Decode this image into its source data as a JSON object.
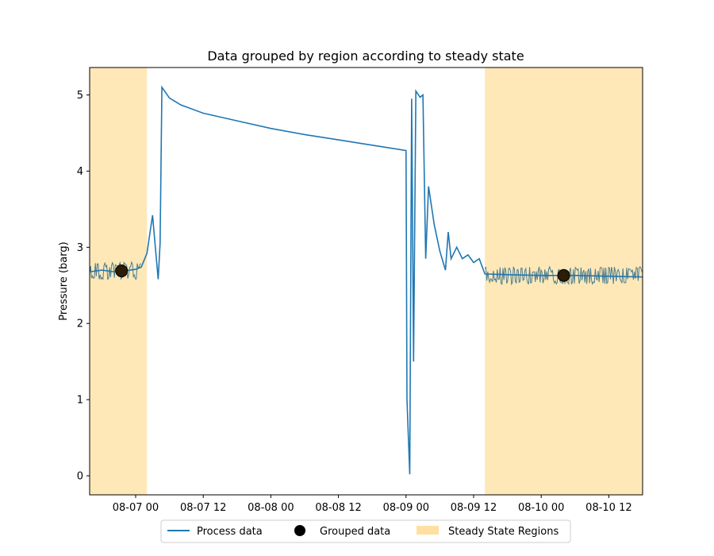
{
  "chart_data": {
    "type": "line",
    "title": "Data grouped by region according to steady state",
    "xlabel": "",
    "ylabel": "Pressure (barg)",
    "x_tick_labels": [
      "08-07 00",
      "08-07 12",
      "08-08 00",
      "08-08 12",
      "08-09 00",
      "08-09 12",
      "08-10 00",
      "08-10 12"
    ],
    "x_ticks": [
      "2021-08-07T00:00",
      "2021-08-07T12:00",
      "2021-08-08T00:00",
      "2021-08-08T12:00",
      "2021-08-09T00:00",
      "2021-08-09T12:00",
      "2021-08-10T00:00",
      "2021-08-10T12:00"
    ],
    "xlim": [
      "2021-08-06T15:50",
      "2021-08-10T18:00"
    ],
    "ylim": [
      -0.25,
      5.36
    ],
    "y_ticks": [
      0,
      1,
      2,
      3,
      4,
      5
    ],
    "legend_position": "below-center",
    "series": [
      {
        "name": "Process data",
        "kind": "line",
        "color": "#1f77b4",
        "points": [
          [
            "2021-08-06T16:00",
            2.68
          ],
          [
            "2021-08-06T18:00",
            2.7
          ],
          [
            "2021-08-06T20:00",
            2.68
          ],
          [
            "2021-08-06T22:00",
            2.69
          ],
          [
            "2021-08-07T00:00",
            2.71
          ],
          [
            "2021-08-07T01:00",
            2.74
          ],
          [
            "2021-08-07T02:00",
            2.92
          ],
          [
            "2021-08-07T03:00",
            3.42
          ],
          [
            "2021-08-07T03:30",
            3.0
          ],
          [
            "2021-08-07T04:00",
            2.58
          ],
          [
            "2021-08-07T04:20",
            3.05
          ],
          [
            "2021-08-07T04:40",
            5.1
          ],
          [
            "2021-08-07T06:00",
            4.96
          ],
          [
            "2021-08-07T08:00",
            4.87
          ],
          [
            "2021-08-07T12:00",
            4.76
          ],
          [
            "2021-08-07T18:00",
            4.66
          ],
          [
            "2021-08-08T00:00",
            4.56
          ],
          [
            "2021-08-08T06:00",
            4.48
          ],
          [
            "2021-08-08T12:00",
            4.41
          ],
          [
            "2021-08-08T18:00",
            4.34
          ],
          [
            "2021-08-09T00:00",
            4.27
          ],
          [
            "2021-08-09T00:10",
            1.0
          ],
          [
            "2021-08-09T00:40",
            0.02
          ],
          [
            "2021-08-09T01:00",
            4.95
          ],
          [
            "2021-08-09T01:20",
            1.5
          ],
          [
            "2021-08-09T01:45",
            5.05
          ],
          [
            "2021-08-09T02:30",
            4.97
          ],
          [
            "2021-08-09T03:00",
            5.0
          ],
          [
            "2021-08-09T03:30",
            2.85
          ],
          [
            "2021-08-09T04:00",
            3.8
          ],
          [
            "2021-08-09T05:00",
            3.3
          ],
          [
            "2021-08-09T06:00",
            2.95
          ],
          [
            "2021-08-09T07:00",
            2.7
          ],
          [
            "2021-08-09T07:30",
            3.2
          ],
          [
            "2021-08-09T08:00",
            2.85
          ],
          [
            "2021-08-09T09:00",
            3.0
          ],
          [
            "2021-08-09T10:00",
            2.85
          ],
          [
            "2021-08-09T11:00",
            2.9
          ],
          [
            "2021-08-09T12:00",
            2.8
          ],
          [
            "2021-08-09T13:00",
            2.85
          ],
          [
            "2021-08-09T14:00",
            2.65
          ],
          [
            "2021-08-09T18:00",
            2.64
          ],
          [
            "2021-08-10T00:00",
            2.63
          ],
          [
            "2021-08-10T06:00",
            2.63
          ],
          [
            "2021-08-10T12:00",
            2.62
          ],
          [
            "2021-08-10T18:00",
            2.61
          ]
        ]
      },
      {
        "name": "Grouped data",
        "kind": "scatter",
        "color": "#000000",
        "points": [
          [
            "2021-08-06T21:30",
            2.69
          ],
          [
            "2021-08-10T04:00",
            2.63
          ]
        ]
      }
    ],
    "regions": {
      "name": "Steady State Regions",
      "color": "#ffe0a0",
      "spans": [
        [
          "2021-08-06T15:50",
          "2021-08-07T02:00"
        ],
        [
          "2021-08-09T14:00",
          "2021-08-10T18:00"
        ]
      ]
    }
  }
}
